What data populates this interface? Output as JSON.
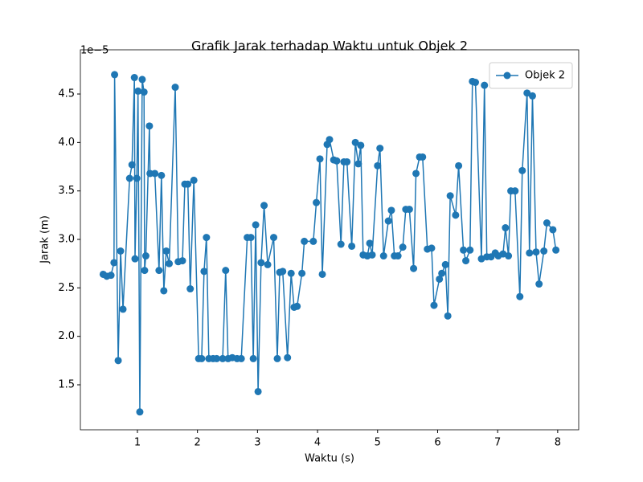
{
  "chart_data": {
    "type": "line",
    "title": "Grafik Jarak terhadap Waktu untuk Objek 2",
    "xlabel": "Waktu (s)",
    "ylabel": "Jarak (m)",
    "y_offset_label": "1e−5",
    "xlim": [
      0.05,
      8.35
    ],
    "ylim": [
      1.036,
      4.956
    ],
    "xticks": [
      1,
      2,
      3,
      4,
      5,
      6,
      7,
      8
    ],
    "yticks": [
      1.5,
      {
        "value": 2,
        "label": "2.0"
      },
      2.5,
      {
        "value": 3,
        "label": "3.0"
      },
      3.5,
      {
        "value": 4,
        "label": "4.0"
      },
      4.5
    ],
    "legend": "upper right",
    "grid": false,
    "x": [
      0.43,
      0.49,
      0.56,
      0.61,
      0.62,
      0.68,
      0.72,
      0.76,
      0.87,
      0.91,
      0.95,
      0.96,
      0.99,
      1.01,
      1.04,
      1.08,
      1.11,
      1.12,
      1.14,
      1.2,
      1.21,
      1.29,
      1.36,
      1.4,
      1.44,
      1.48,
      1.53,
      1.63,
      1.68,
      1.75,
      1.79,
      1.84,
      1.88,
      1.94,
      2.02,
      2.07,
      2.11,
      2.15,
      2.19,
      2.26,
      2.32,
      2.42,
      2.47,
      2.51,
      2.58,
      2.66,
      2.73,
      2.83,
      2.89,
      2.93,
      2.97,
      3.01,
      3.06,
      3.11,
      3.17,
      3.27,
      3.33,
      3.37,
      3.42,
      3.5,
      3.56,
      3.61,
      3.66,
      3.74,
      3.78,
      3.93,
      3.98,
      4.04,
      4.08,
      4.16,
      4.2,
      4.27,
      4.32,
      4.39,
      4.44,
      4.49,
      4.57,
      4.63,
      4.68,
      4.72,
      4.76,
      4.83,
      4.87,
      4.91,
      5.0,
      5.04,
      5.1,
      5.18,
      5.23,
      5.28,
      5.34,
      5.42,
      5.47,
      5.53,
      5.6,
      5.64,
      5.7,
      5.75,
      5.83,
      5.9,
      5.94,
      6.03,
      6.07,
      6.13,
      6.17,
      6.21,
      6.3,
      6.35,
      6.43,
      6.47,
      6.54,
      6.58,
      6.63,
      6.73,
      6.78,
      6.82,
      6.89,
      6.96,
      7.01,
      7.09,
      7.13,
      7.18,
      7.22,
      7.29,
      7.37,
      7.41,
      7.49,
      7.53,
      7.58,
      7.64,
      7.69,
      7.77,
      7.82,
      7.92,
      7.97
    ],
    "series": [
      {
        "name": "Objek 2",
        "color": "#1f77b4",
        "values": [
          2.64,
          2.62,
          2.63,
          2.76,
          4.7,
          1.75,
          2.88,
          2.28,
          3.63,
          3.77,
          4.67,
          2.8,
          3.63,
          4.53,
          1.22,
          4.65,
          4.52,
          2.68,
          2.83,
          4.17,
          3.68,
          3.68,
          2.68,
          3.66,
          2.47,
          2.88,
          2.75,
          4.57,
          2.77,
          2.78,
          3.57,
          3.57,
          2.49,
          3.61,
          1.77,
          1.77,
          2.67,
          3.02,
          1.77,
          1.77,
          1.77,
          1.77,
          2.68,
          1.77,
          1.78,
          1.77,
          1.77,
          3.02,
          3.02,
          1.77,
          3.15,
          1.43,
          2.76,
          3.35,
          2.74,
          3.02,
          1.77,
          2.66,
          2.67,
          1.78,
          2.65,
          2.3,
          2.31,
          2.65,
          2.98,
          2.98,
          3.38,
          3.83,
          2.64,
          3.98,
          4.03,
          3.82,
          3.81,
          2.95,
          3.8,
          3.8,
          2.93,
          4.0,
          3.78,
          3.97,
          2.84,
          2.83,
          2.96,
          2.84,
          3.76,
          3.94,
          2.83,
          3.19,
          3.3,
          2.83,
          2.83,
          2.92,
          3.31,
          3.31,
          2.7,
          3.68,
          3.85,
          3.85,
          2.9,
          2.91,
          2.32,
          2.59,
          2.65,
          2.74,
          2.21,
          3.45,
          3.25,
          3.76,
          2.89,
          2.78,
          2.89,
          4.63,
          4.62,
          2.8,
          4.59,
          2.82,
          2.82,
          2.86,
          2.83,
          2.85,
          3.12,
          2.83,
          3.5,
          3.5,
          2.41,
          3.71,
          4.51,
          2.86,
          4.48,
          2.87,
          2.54,
          2.88,
          3.17,
          3.1,
          2.89
        ]
      }
    ]
  }
}
